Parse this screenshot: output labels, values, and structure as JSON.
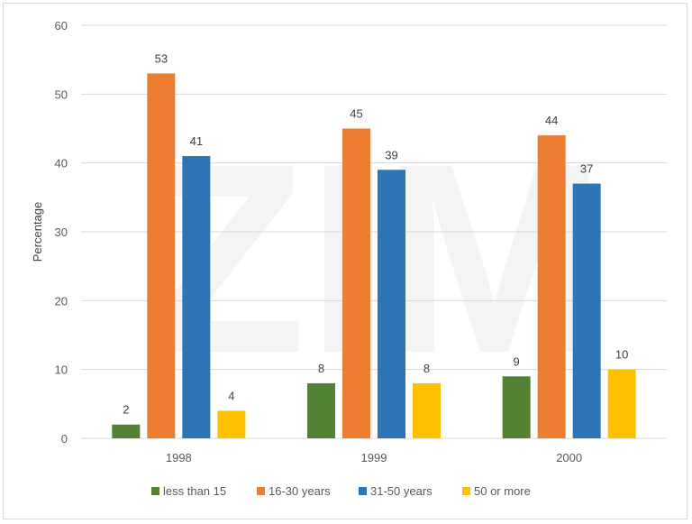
{
  "watermark": "ZIM",
  "chart_data": {
    "type": "bar",
    "title": "",
    "xlabel": "",
    "ylabel": "Percentage",
    "ylim": [
      0,
      60
    ],
    "yticks": [
      0,
      10,
      20,
      30,
      40,
      50,
      60
    ],
    "grid": true,
    "legend_position": "bottom",
    "categories": [
      "1998",
      "1999",
      "2000"
    ],
    "series": [
      {
        "name": "less than 15",
        "color": "#548235",
        "values": [
          2,
          8,
          9
        ]
      },
      {
        "name": "16-30 years",
        "color": "#ED7D31",
        "values": [
          53,
          45,
          44
        ]
      },
      {
        "name": "31-50 years",
        "color": "#2E75B6",
        "values": [
          41,
          39,
          37
        ]
      },
      {
        "name": "50 or more",
        "color": "#FFC000",
        "values": [
          4,
          8,
          10
        ]
      }
    ]
  }
}
